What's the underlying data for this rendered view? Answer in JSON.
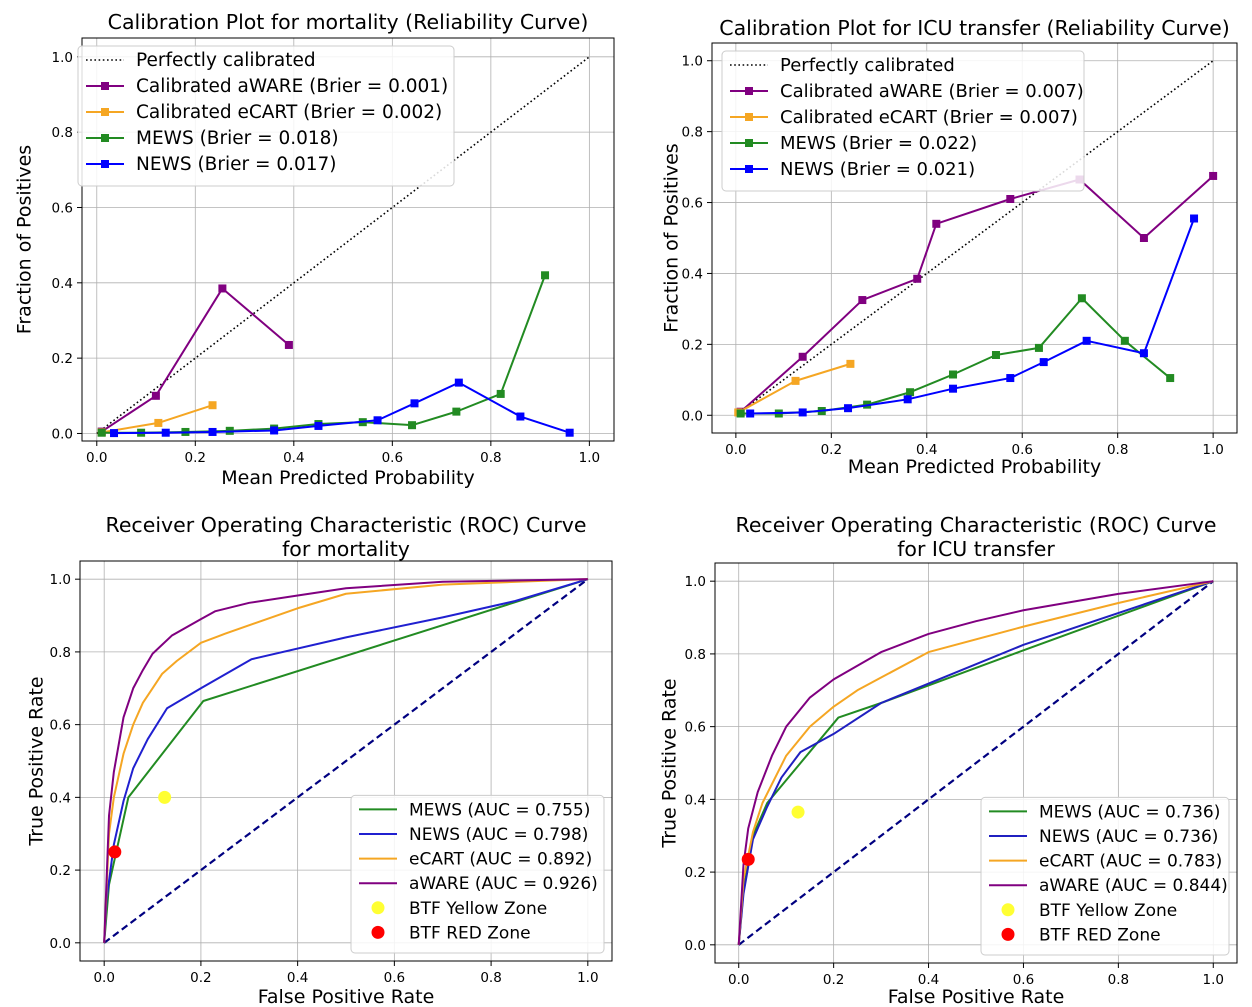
{
  "chart_data": [
    {
      "type": "line",
      "id": "cal-mortality",
      "title": "Calibration Plot for mortality (Reliability Curve)",
      "xlabel": "Mean Predicted Probability",
      "ylabel": "Fraction of Positives",
      "xlim": [
        -0.03,
        1.05
      ],
      "ylim": [
        -0.02,
        1.05
      ],
      "xticks": [
        0.0,
        0.2,
        0.4,
        0.6,
        0.8,
        1.0
      ],
      "yticks": [
        0.0,
        0.2,
        0.4,
        0.6,
        0.8,
        1.0
      ],
      "grid": true,
      "legend_position": "top-left",
      "series": [
        {
          "name": "Perfectly calibrated",
          "color": "#000000",
          "style": "dotted",
          "marker": "none",
          "points": [
            [
              0,
              0
            ],
            [
              1,
              1
            ]
          ]
        },
        {
          "name": "Calibrated aWARE (Brier = 0.001)",
          "color": "#800080",
          "style": "solid",
          "marker": "square",
          "points": [
            [
              0.01,
              0.005
            ],
            [
              0.12,
              0.1
            ],
            [
              0.255,
              0.385
            ],
            [
              0.39,
              0.235
            ]
          ]
        },
        {
          "name": "Calibrated eCART (Brier = 0.002)",
          "color": "#f5a623",
          "style": "solid",
          "marker": "square",
          "points": [
            [
              0.01,
              0.003
            ],
            [
              0.125,
              0.028
            ],
            [
              0.235,
              0.075
            ]
          ]
        },
        {
          "name": "MEWS (Brier = 0.018)",
          "color": "#228b22",
          "style": "solid",
          "marker": "square",
          "points": [
            [
              0.01,
              0.002
            ],
            [
              0.09,
              0.002
            ],
            [
              0.18,
              0.004
            ],
            [
              0.27,
              0.007
            ],
            [
              0.36,
              0.013
            ],
            [
              0.45,
              0.025
            ],
            [
              0.54,
              0.03
            ],
            [
              0.64,
              0.022
            ],
            [
              0.73,
              0.058
            ],
            [
              0.82,
              0.105
            ],
            [
              0.91,
              0.42
            ]
          ]
        },
        {
          "name": "NEWS (Brier = 0.017)",
          "color": "#0000ff",
          "style": "solid",
          "marker": "square",
          "points": [
            [
              0.035,
              0.001
            ],
            [
              0.14,
              0.002
            ],
            [
              0.235,
              0.004
            ],
            [
              0.36,
              0.008
            ],
            [
              0.45,
              0.02
            ],
            [
              0.57,
              0.035
            ],
            [
              0.645,
              0.08
            ],
            [
              0.735,
              0.135
            ],
            [
              0.86,
              0.045
            ],
            [
              0.96,
              0.002
            ]
          ]
        }
      ]
    },
    {
      "type": "line",
      "id": "cal-icu",
      "title": "Calibration Plot for ICU transfer (Reliability Curve)",
      "xlabel": "Mean Predicted Probability",
      "ylabel": "Fraction of Positives",
      "xlim": [
        -0.05,
        1.05
      ],
      "ylim": [
        -0.05,
        1.05
      ],
      "xticks": [
        0.0,
        0.2,
        0.4,
        0.6,
        0.8,
        1.0
      ],
      "yticks": [
        0.0,
        0.2,
        0.4,
        0.6,
        0.8,
        1.0
      ],
      "grid": true,
      "legend_position": "top-left",
      "series": [
        {
          "name": "Perfectly calibrated",
          "color": "#000000",
          "style": "dotted",
          "marker": "none",
          "points": [
            [
              0,
              0
            ],
            [
              1,
              1
            ]
          ]
        },
        {
          "name": "Calibrated aWARE (Brier = 0.007)",
          "color": "#800080",
          "style": "solid",
          "marker": "square",
          "points": [
            [
              0.01,
              0.01
            ],
            [
              0.14,
              0.165
            ],
            [
              0.265,
              0.325
            ],
            [
              0.38,
              0.385
            ],
            [
              0.42,
              0.54
            ],
            [
              0.575,
              0.61
            ],
            [
              0.72,
              0.665
            ],
            [
              0.855,
              0.5
            ],
            [
              1.0,
              0.675
            ]
          ]
        },
        {
          "name": "Calibrated eCART (Brier = 0.007)",
          "color": "#f5a623",
          "style": "solid",
          "marker": "square",
          "points": [
            [
              0.005,
              0.008
            ],
            [
              0.125,
              0.097
            ],
            [
              0.24,
              0.145
            ]
          ]
        },
        {
          "name": "MEWS (Brier = 0.022)",
          "color": "#228b22",
          "style": "solid",
          "marker": "square",
          "points": [
            [
              0.01,
              0.005
            ],
            [
              0.09,
              0.005
            ],
            [
              0.18,
              0.012
            ],
            [
              0.275,
              0.03
            ],
            [
              0.365,
              0.065
            ],
            [
              0.455,
              0.115
            ],
            [
              0.545,
              0.17
            ],
            [
              0.635,
              0.19
            ],
            [
              0.725,
              0.33
            ],
            [
              0.815,
              0.21
            ],
            [
              0.91,
              0.105
            ]
          ]
        },
        {
          "name": "NEWS (Brier = 0.021)",
          "color": "#0000ff",
          "style": "solid",
          "marker": "square",
          "points": [
            [
              0.03,
              0.005
            ],
            [
              0.14,
              0.008
            ],
            [
              0.235,
              0.02
            ],
            [
              0.36,
              0.045
            ],
            [
              0.455,
              0.075
            ],
            [
              0.575,
              0.105
            ],
            [
              0.645,
              0.15
            ],
            [
              0.735,
              0.21
            ],
            [
              0.855,
              0.175
            ],
            [
              0.96,
              0.555
            ]
          ]
        }
      ]
    },
    {
      "type": "line",
      "id": "roc-mortality",
      "title": "Receiver Operating Characteristic (ROC) Curve\nfor mortality",
      "xlabel": "False Positive Rate",
      "ylabel": "True Positive Rate",
      "xlim": [
        -0.05,
        1.05
      ],
      "ylim": [
        -0.05,
        1.05
      ],
      "xticks": [
        0.0,
        0.2,
        0.4,
        0.6,
        0.8,
        1.0
      ],
      "yticks": [
        0.0,
        0.2,
        0.4,
        0.6,
        0.8,
        1.0
      ],
      "grid": true,
      "legend_position": "bottom-right",
      "series": [
        {
          "name": "",
          "color": "#000080",
          "style": "dashed",
          "marker": "none",
          "points": [
            [
              0,
              0
            ],
            [
              1,
              1
            ]
          ]
        },
        {
          "name": "MEWS (AUC = 0.755)",
          "color": "#228b22",
          "style": "solid",
          "marker": "none",
          "points": [
            [
              0,
              0
            ],
            [
              0.01,
              0.16
            ],
            [
              0.02,
              0.22
            ],
            [
              0.05,
              0.4
            ],
            [
              0.205,
              0.665
            ],
            [
              1,
              1
            ]
          ]
        },
        {
          "name": "NEWS (AUC = 0.798)",
          "color": "#2020d0",
          "style": "solid",
          "marker": "none",
          "points": [
            [
              0,
              0
            ],
            [
              0.005,
              0.12
            ],
            [
              0.02,
              0.27
            ],
            [
              0.04,
              0.39
            ],
            [
              0.06,
              0.48
            ],
            [
              0.09,
              0.56
            ],
            [
              0.13,
              0.645
            ],
            [
              0.2,
              0.7
            ],
            [
              0.305,
              0.78
            ],
            [
              0.5,
              0.84
            ],
            [
              0.7,
              0.895
            ],
            [
              0.85,
              0.94
            ],
            [
              1,
              1
            ]
          ]
        },
        {
          "name": "eCART (AUC = 0.892)",
          "color": "#f5a623",
          "style": "solid",
          "marker": "none",
          "points": [
            [
              0,
              0
            ],
            [
              0.01,
              0.3
            ],
            [
              0.02,
              0.4
            ],
            [
              0.04,
              0.52
            ],
            [
              0.06,
              0.6
            ],
            [
              0.08,
              0.66
            ],
            [
              0.1,
              0.7
            ],
            [
              0.12,
              0.74
            ],
            [
              0.15,
              0.775
            ],
            [
              0.2,
              0.825
            ],
            [
              0.25,
              0.85
            ],
            [
              0.4,
              0.92
            ],
            [
              0.5,
              0.96
            ],
            [
              0.7,
              0.985
            ],
            [
              1,
              1
            ]
          ]
        },
        {
          "name": "aWARE (AUC = 0.926)",
          "color": "#800080",
          "style": "solid",
          "marker": "none",
          "points": [
            [
              0,
              0
            ],
            [
              0.01,
              0.35
            ],
            [
              0.02,
              0.47
            ],
            [
              0.04,
              0.62
            ],
            [
              0.06,
              0.7
            ],
            [
              0.08,
              0.75
            ],
            [
              0.1,
              0.795
            ],
            [
              0.14,
              0.845
            ],
            [
              0.2,
              0.89
            ],
            [
              0.23,
              0.912
            ],
            [
              0.3,
              0.935
            ],
            [
              0.4,
              0.955
            ],
            [
              0.5,
              0.975
            ],
            [
              0.7,
              0.993
            ],
            [
              1,
              1
            ]
          ]
        },
        {
          "name": "BTF Yellow Zone",
          "color": "#ffff33",
          "style": "none",
          "marker": "circle",
          "points": [
            [
              0.125,
              0.4
            ]
          ]
        },
        {
          "name": "BTF RED Zone",
          "color": "#ff0000",
          "style": "none",
          "marker": "circle",
          "points": [
            [
              0.022,
              0.25
            ]
          ]
        }
      ]
    },
    {
      "type": "line",
      "id": "roc-icu",
      "title": "Receiver Operating Characteristic (ROC) Curve\nfor ICU transfer",
      "xlabel": "False Positive Rate",
      "ylabel": "True Positive Rate",
      "xlim": [
        -0.05,
        1.05
      ],
      "ylim": [
        -0.05,
        1.05
      ],
      "xticks": [
        0.0,
        0.2,
        0.4,
        0.6,
        0.8,
        1.0
      ],
      "yticks": [
        0.0,
        0.2,
        0.4,
        0.6,
        0.8,
        1.0
      ],
      "grid": true,
      "legend_position": "bottom-right",
      "series": [
        {
          "name": "",
          "color": "#000080",
          "style": "dashed",
          "marker": "none",
          "points": [
            [
              0,
              0
            ],
            [
              1,
              1
            ]
          ]
        },
        {
          "name": "MEWS (AUC = 0.736)",
          "color": "#228b22",
          "style": "solid",
          "marker": "none",
          "points": [
            [
              0,
              0
            ],
            [
              0.01,
              0.15
            ],
            [
              0.03,
              0.3
            ],
            [
              0.06,
              0.39
            ],
            [
              0.21,
              0.625
            ],
            [
              0.3,
              0.665
            ],
            [
              0.6,
              0.81
            ],
            [
              1,
              1
            ]
          ]
        },
        {
          "name": "NEWS (AUC = 0.736)",
          "color": "#2020c0",
          "style": "solid",
          "marker": "none",
          "points": [
            [
              0,
              0
            ],
            [
              0.01,
              0.14
            ],
            [
              0.03,
              0.29
            ],
            [
              0.06,
              0.38
            ],
            [
              0.09,
              0.46
            ],
            [
              0.13,
              0.53
            ],
            [
              0.2,
              0.58
            ],
            [
              0.3,
              0.665
            ],
            [
              0.6,
              0.825
            ],
            [
              1,
              1
            ]
          ]
        },
        {
          "name": "eCART (AUC = 0.783)",
          "color": "#f5a623",
          "style": "solid",
          "marker": "none",
          "points": [
            [
              0,
              0
            ],
            [
              0.01,
              0.18
            ],
            [
              0.03,
              0.31
            ],
            [
              0.05,
              0.39
            ],
            [
              0.1,
              0.52
            ],
            [
              0.15,
              0.6
            ],
            [
              0.2,
              0.655
            ],
            [
              0.25,
              0.7
            ],
            [
              0.3,
              0.735
            ],
            [
              0.4,
              0.805
            ],
            [
              0.6,
              0.875
            ],
            [
              0.8,
              0.94
            ],
            [
              1,
              1
            ]
          ]
        },
        {
          "name": "aWARE (AUC = 0.844)",
          "color": "#800080",
          "style": "solid",
          "marker": "none",
          "points": [
            [
              0,
              0
            ],
            [
              0.01,
              0.22
            ],
            [
              0.02,
              0.32
            ],
            [
              0.04,
              0.42
            ],
            [
              0.07,
              0.52
            ],
            [
              0.1,
              0.6
            ],
            [
              0.15,
              0.68
            ],
            [
              0.2,
              0.73
            ],
            [
              0.3,
              0.805
            ],
            [
              0.4,
              0.855
            ],
            [
              0.5,
              0.89
            ],
            [
              0.6,
              0.92
            ],
            [
              0.8,
              0.965
            ],
            [
              1,
              1
            ]
          ]
        },
        {
          "name": "BTF Yellow Zone",
          "color": "#ffff33",
          "style": "none",
          "marker": "circle",
          "points": [
            [
              0.125,
              0.365
            ]
          ]
        },
        {
          "name": "BTF RED Zone",
          "color": "#ff0000",
          "style": "none",
          "marker": "circle",
          "points": [
            [
              0.02,
              0.235
            ]
          ]
        }
      ]
    }
  ]
}
